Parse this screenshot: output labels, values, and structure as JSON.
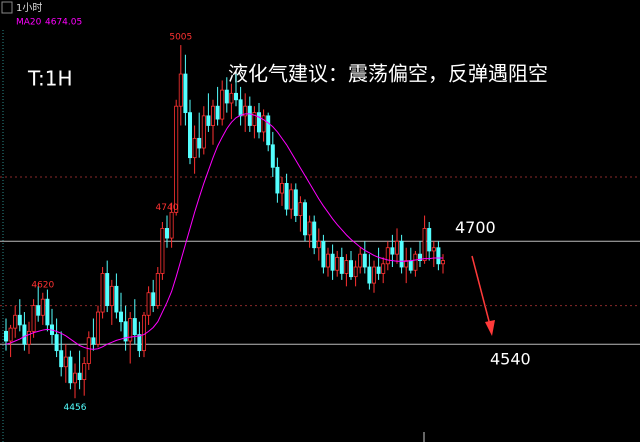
{
  "chart_data": {
    "type": "candlestick",
    "header": "1小时",
    "title": "液化气建议：震荡偏空，反弹遇阻空",
    "timeframe": "T:1H",
    "ylim": [
      4388,
      5044
    ],
    "up_color": "#ff3232",
    "down_color": "#54ffff",
    "candles": {
      "open": [
        4560,
        4545,
        4565,
        4585,
        4570,
        4540,
        4560,
        4600,
        4585,
        4610,
        4570,
        4555,
        4530,
        4505,
        4520,
        4480,
        4495,
        4485,
        4510,
        4550,
        4540,
        4590,
        4650,
        4600,
        4630,
        4590,
        4575,
        4545,
        4580,
        4555,
        4530,
        4585,
        4620,
        4600,
        4650,
        4720,
        4705,
        4745,
        4910,
        4960,
        4900,
        4830,
        4860,
        4845,
        4895,
        4880,
        4910,
        4890,
        4935,
        4915,
        4930,
        4920,
        4895,
        4910,
        4880,
        4900,
        4870,
        4895,
        4850,
        4815,
        4775,
        4790,
        4750,
        4780,
        4740,
        4760,
        4710,
        4730,
        4690,
        4700,
        4660,
        4680,
        4655,
        4675,
        4650,
        4670,
        4645,
        4660,
        4680,
        4660,
        4635,
        4660,
        4650,
        4665,
        4690,
        4680,
        4700,
        4660,
        4670,
        4655,
        4680,
        4670,
        4720,
        4685,
        4690,
        4665
      ],
      "high": [
        4580,
        4570,
        4600,
        4610,
        4590,
        4575,
        4610,
        4630,
        4620,
        4625,
        4595,
        4580,
        4560,
        4540,
        4530,
        4510,
        4530,
        4520,
        4560,
        4580,
        4600,
        4660,
        4670,
        4640,
        4650,
        4620,
        4600,
        4590,
        4610,
        4575,
        4590,
        4630,
        4640,
        4660,
        4730,
        4740,
        4760,
        4920,
        5005,
        4990,
        4920,
        4880,
        4900,
        4910,
        4930,
        4920,
        4940,
        4950,
        4955,
        4945,
        4960,
        4940,
        4930,
        4925,
        4910,
        4915,
        4905,
        4900,
        4870,
        4830,
        4800,
        4805,
        4790,
        4790,
        4770,
        4765,
        4740,
        4740,
        4720,
        4710,
        4690,
        4695,
        4685,
        4690,
        4680,
        4685,
        4670,
        4690,
        4700,
        4680,
        4670,
        4690,
        4675,
        4700,
        4710,
        4720,
        4710,
        4690,
        4690,
        4685,
        4700,
        4740,
        4730,
        4700,
        4700,
        4680
      ],
      "low": [
        4530,
        4520,
        4550,
        4560,
        4530,
        4525,
        4550,
        4575,
        4570,
        4560,
        4540,
        4520,
        4490,
        4480,
        4470,
        4456,
        4470,
        4460,
        4500,
        4530,
        4535,
        4580,
        4590,
        4570,
        4580,
        4560,
        4530,
        4510,
        4540,
        4520,
        4520,
        4570,
        4590,
        4595,
        4640,
        4690,
        4690,
        4740,
        4880,
        4880,
        4820,
        4805,
        4830,
        4835,
        4870,
        4850,
        4880,
        4880,
        4900,
        4890,
        4910,
        4880,
        4870,
        4870,
        4860,
        4860,
        4855,
        4840,
        4800,
        4760,
        4755,
        4740,
        4735,
        4730,
        4715,
        4700,
        4690,
        4680,
        4670,
        4650,
        4645,
        4640,
        4645,
        4640,
        4630,
        4640,
        4630,
        4650,
        4650,
        4625,
        4620,
        4640,
        4635,
        4655,
        4660,
        4665,
        4650,
        4635,
        4650,
        4645,
        4660,
        4665,
        4670,
        4660,
        4655,
        4650
      ],
      "close": [
        4545,
        4565,
        4585,
        4570,
        4540,
        4560,
        4600,
        4585,
        4610,
        4570,
        4555,
        4530,
        4505,
        4520,
        4480,
        4495,
        4485,
        4510,
        4550,
        4540,
        4590,
        4650,
        4600,
        4630,
        4590,
        4575,
        4545,
        4580,
        4555,
        4530,
        4585,
        4620,
        4600,
        4650,
        4720,
        4705,
        4745,
        4910,
        4960,
        4900,
        4830,
        4860,
        4845,
        4895,
        4880,
        4910,
        4890,
        4935,
        4915,
        4930,
        4920,
        4895,
        4910,
        4880,
        4900,
        4870,
        4895,
        4850,
        4815,
        4775,
        4790,
        4750,
        4780,
        4740,
        4760,
        4710,
        4730,
        4690,
        4700,
        4660,
        4680,
        4655,
        4675,
        4650,
        4670,
        4645,
        4660,
        4680,
        4660,
        4635,
        4660,
        4650,
        4665,
        4690,
        4680,
        4700,
        4660,
        4670,
        4655,
        4680,
        4670,
        4720,
        4685,
        4690,
        4665,
        4670
      ]
    },
    "ma": {
      "name": "MA20",
      "color": "#ff00ff",
      "values": [
        4540,
        4542,
        4545,
        4548,
        4552,
        4555,
        4558,
        4560,
        4562,
        4563,
        4562,
        4560,
        4557,
        4553,
        4548,
        4543,
        4538,
        4535,
        4533,
        4532,
        4533,
        4536,
        4540,
        4543,
        4546,
        4548,
        4550,
        4551,
        4552,
        4553,
        4555,
        4560,
        4566,
        4575,
        4590,
        4605,
        4622,
        4645,
        4670,
        4695,
        4720,
        4745,
        4768,
        4790,
        4810,
        4830,
        4848,
        4862,
        4875,
        4885,
        4892,
        4896,
        4898,
        4898,
        4896,
        4893,
        4889,
        4884,
        4878,
        4870,
        4860,
        4850,
        4838,
        4826,
        4814,
        4802,
        4790,
        4778,
        4766,
        4755,
        4745,
        4735,
        4726,
        4718,
        4710,
        4703,
        4697,
        4691,
        4686,
        4682,
        4678,
        4675,
        4673,
        4671,
        4670,
        4669,
        4669,
        4669,
        4670,
        4671,
        4672,
        4673,
        4673,
        4674,
        4674,
        4674.05
      ]
    },
    "extremes": [
      5005,
      4740,
      4620,
      4456
    ],
    "levels": [
      4700,
      4540
    ],
    "dashed_levels": [
      4800,
      4600
    ]
  }
}
